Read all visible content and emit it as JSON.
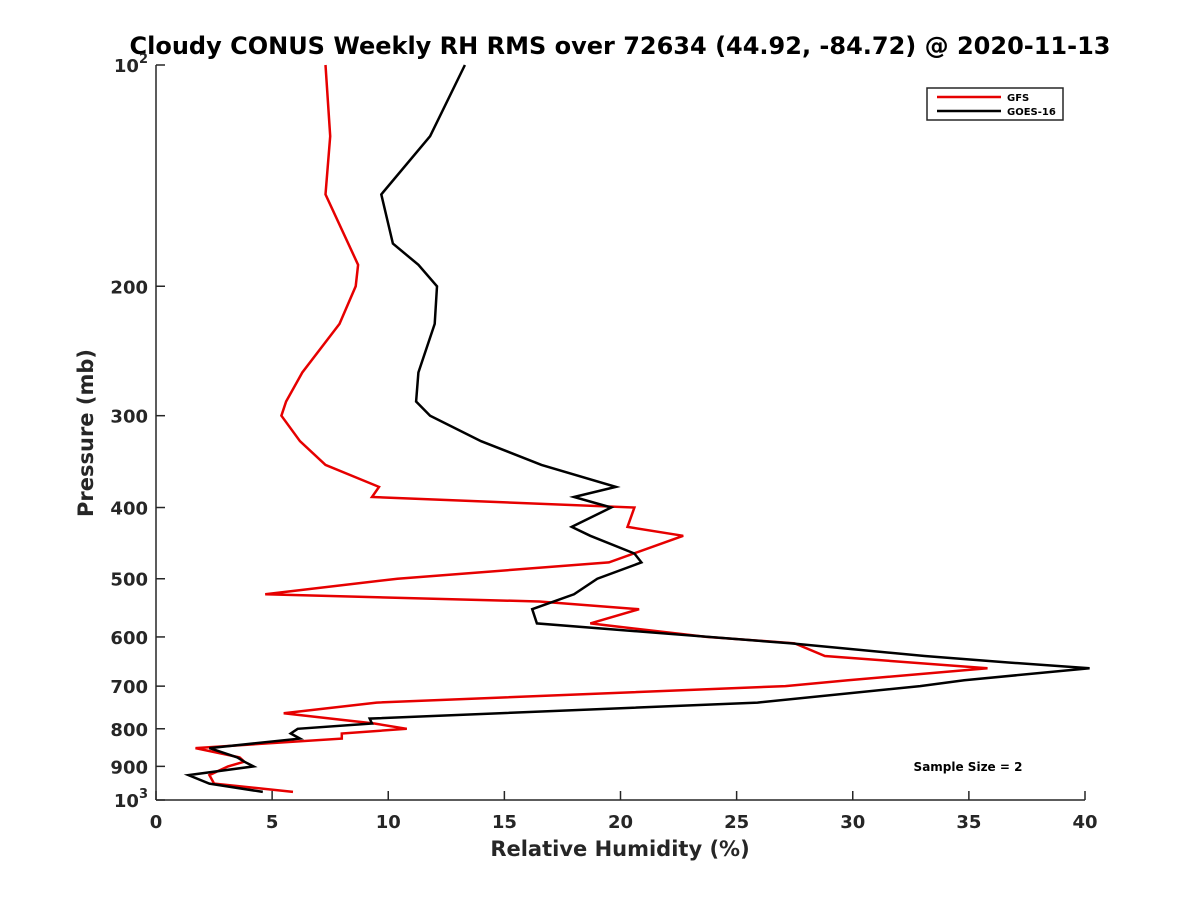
{
  "chart_data": {
    "type": "line",
    "title": "Cloudy CONUS Weekly RH RMS over 72634 (44.92, -84.72) @ 2020-11-13",
    "xlabel": "Relative Humidity (%)",
    "ylabel": "Pressure (mb)",
    "xlim": [
      0,
      40
    ],
    "ylim": [
      100,
      1000
    ],
    "y_scale": "log",
    "y_reversed": true,
    "grid": false,
    "legend_position": "top-right",
    "x_ticks": [
      "0",
      "5",
      "10",
      "15",
      "20",
      "25",
      "30",
      "35",
      "40"
    ],
    "y_ticks": [
      {
        "value": 100,
        "base": "10",
        "exp": "2"
      },
      {
        "value": 200,
        "label": "200"
      },
      {
        "value": 300,
        "label": "300"
      },
      {
        "value": 400,
        "label": "400"
      },
      {
        "value": 500,
        "label": "500"
      },
      {
        "value": 600,
        "label": "600"
      },
      {
        "value": 700,
        "label": "700"
      },
      {
        "value": 800,
        "label": "800"
      },
      {
        "value": 900,
        "label": "900"
      },
      {
        "value": 1000,
        "base": "10",
        "exp": "3"
      }
    ],
    "annotation": "Sample Size = 2",
    "series": [
      {
        "name": "GFS",
        "color": "#e60000",
        "points": [
          [
            7.3,
            100
          ],
          [
            7.5,
            125
          ],
          [
            7.3,
            150
          ],
          [
            8.7,
            187
          ],
          [
            8.6,
            200
          ],
          [
            7.9,
            225
          ],
          [
            6.3,
            262
          ],
          [
            5.6,
            287
          ],
          [
            5.4,
            300
          ],
          [
            6.2,
            325
          ],
          [
            7.3,
            350
          ],
          [
            9.6,
            375
          ],
          [
            9.3,
            387
          ],
          [
            20.6,
            400
          ],
          [
            20.3,
            425
          ],
          [
            22.7,
            437
          ],
          [
            19.5,
            475
          ],
          [
            10.4,
            500
          ],
          [
            4.7,
            525
          ],
          [
            16.5,
            537
          ],
          [
            20.8,
            550
          ],
          [
            18.7,
            575
          ],
          [
            23.7,
            600
          ],
          [
            27.5,
            612
          ],
          [
            28.8,
            637
          ],
          [
            35.8,
            662
          ],
          [
            29.8,
            687
          ],
          [
            27.1,
            700
          ],
          [
            9.5,
            737
          ],
          [
            5.5,
            762
          ],
          [
            9.4,
            787
          ],
          [
            10.8,
            800
          ],
          [
            8.0,
            812
          ],
          [
            8.0,
            825
          ],
          [
            1.7,
            850
          ],
          [
            3.6,
            875
          ],
          [
            3.8,
            887
          ],
          [
            3.1,
            900
          ],
          [
            2.3,
            925
          ],
          [
            2.5,
            950
          ],
          [
            5.9,
            975
          ]
        ]
      },
      {
        "name": "GOES-16",
        "color": "#000000",
        "points": [
          [
            13.3,
            100
          ],
          [
            11.8,
            125
          ],
          [
            9.7,
            150
          ],
          [
            10.2,
            175
          ],
          [
            11.3,
            187
          ],
          [
            12.1,
            200
          ],
          [
            12.0,
            225
          ],
          [
            11.3,
            262
          ],
          [
            11.2,
            287
          ],
          [
            11.8,
            300
          ],
          [
            14.0,
            325
          ],
          [
            16.6,
            350
          ],
          [
            19.8,
            375
          ],
          [
            18.0,
            387
          ],
          [
            19.6,
            400
          ],
          [
            17.9,
            425
          ],
          [
            18.7,
            437
          ],
          [
            20.6,
            462
          ],
          [
            20.9,
            475
          ],
          [
            19.0,
            500
          ],
          [
            18.0,
            525
          ],
          [
            16.2,
            550
          ],
          [
            16.4,
            575
          ],
          [
            27.3,
            612
          ],
          [
            33.1,
            637
          ],
          [
            36.7,
            650
          ],
          [
            40.2,
            662
          ],
          [
            34.8,
            687
          ],
          [
            32.9,
            700
          ],
          [
            25.9,
            737
          ],
          [
            9.2,
            775
          ],
          [
            9.3,
            787
          ],
          [
            6.1,
            800
          ],
          [
            5.8,
            812
          ],
          [
            6.2,
            825
          ],
          [
            2.3,
            850
          ],
          [
            3.5,
            875
          ],
          [
            3.8,
            887
          ],
          [
            4.2,
            900
          ],
          [
            1.4,
            925
          ],
          [
            2.3,
            950
          ],
          [
            4.6,
            975
          ]
        ]
      }
    ]
  }
}
